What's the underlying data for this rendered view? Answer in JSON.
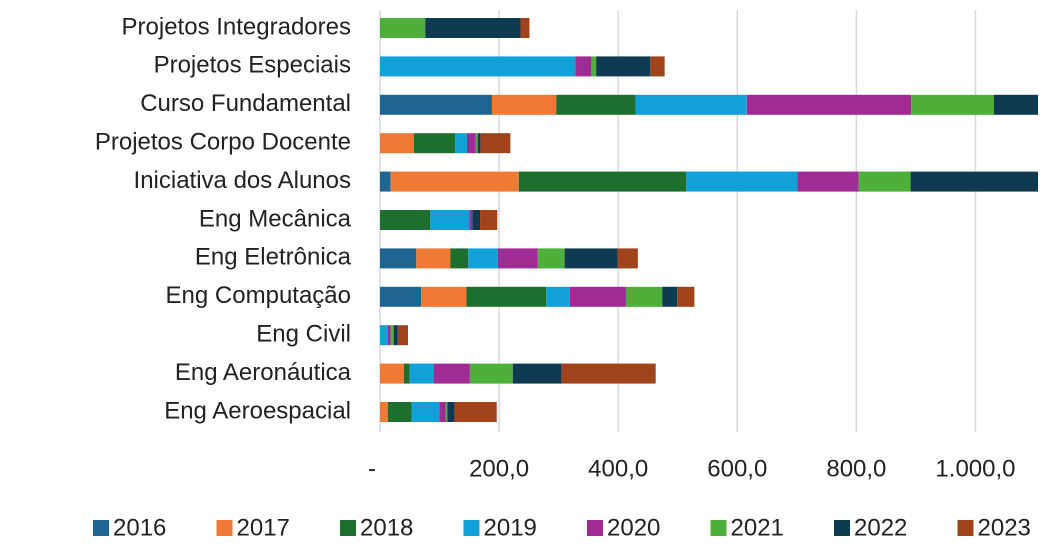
{
  "chart_data": {
    "type": "stacked-bar-horizontal",
    "categories": [
      "Projetos Integradores",
      "Projetos Especiais",
      "Curso Fundamental",
      "Projetos Corpo Docente",
      "Iniciativa dos Alunos",
      "Eng Mecânica",
      "Eng Eletrônica",
      "Eng Computação",
      "Eng Civil",
      "Eng Aeronáutica",
      "Eng Aeroespacial"
    ],
    "series": [
      {
        "name": "2016",
        "color": "#1f6591",
        "values": [
          0,
          0,
          188,
          0,
          18,
          0,
          61,
          69,
          0,
          0,
          0
        ]
      },
      {
        "name": "2017",
        "color": "#f07a35",
        "values": [
          0,
          0,
          108,
          57,
          215,
          0,
          57,
          76,
          0,
          40,
          13
        ]
      },
      {
        "name": "2018",
        "color": "#1e6e2e",
        "values": [
          0,
          0,
          133,
          69,
          281,
          84,
          30,
          134,
          0,
          10,
          40
        ]
      },
      {
        "name": "2019",
        "color": "#12a0d8",
        "values": [
          0,
          328,
          187,
          20,
          187,
          66,
          50,
          40,
          13,
          40,
          47
        ]
      },
      {
        "name": "2020",
        "color": "#a02b93",
        "values": [
          0,
          27,
          276,
          15,
          103,
          5,
          67,
          94,
          5,
          61,
          10
        ]
      },
      {
        "name": "2021",
        "color": "#4eaf3a",
        "values": [
          76,
          8,
          139,
          3,
          87,
          0,
          45,
          61,
          5,
          72,
          3
        ]
      },
      {
        "name": "2022",
        "color": "#0e3b52",
        "values": [
          160,
          91,
          100,
          5,
          250,
          13,
          89,
          25,
          7,
          82,
          12
        ]
      },
      {
        "name": "2023",
        "color": "#a0431a",
        "values": [
          15,
          24,
          0,
          50,
          0,
          29,
          34,
          29,
          17,
          158,
          71
        ]
      }
    ],
    "xlim": [
      0,
      1105
    ],
    "xticks": [
      {
        "value": 0,
        "label": "-"
      },
      {
        "value": 200,
        "label": "200,0"
      },
      {
        "value": 400,
        "label": "400,0"
      },
      {
        "value": 600,
        "label": "600,0"
      },
      {
        "value": 800,
        "label": "800,0"
      },
      {
        "value": 1000,
        "label": "1.000,0"
      }
    ],
    "grid": true,
    "legend": "bottom"
  }
}
